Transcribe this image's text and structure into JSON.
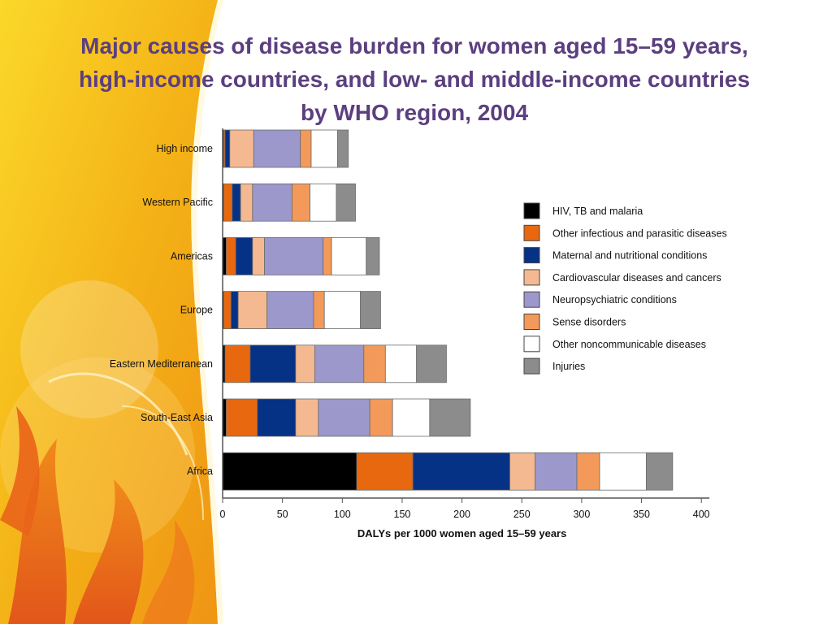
{
  "slide": {
    "title_lines": [
      "Major causes of disease burden for women aged 15–59 years,",
      "high-income countries, and low- and middle-income countries",
      "by WHO region, 2004"
    ]
  },
  "colors": {
    "title": "#5b3f7f",
    "background_gold": "#f6c21a",
    "background_orange": "#e8701c"
  },
  "chart_data": {
    "type": "bar",
    "orientation": "horizontal",
    "stacked": true,
    "categories": [
      "High income",
      "Western Pacific",
      "Americas",
      "Europe",
      "Eastern Mediterranean",
      "South-East Asia",
      "Africa"
    ],
    "series": [
      {
        "name": "HIV, TB and malaria",
        "color": "#000000",
        "values": [
          1,
          1,
          3,
          1,
          2,
          3,
          112
        ]
      },
      {
        "name": "Other infectious and parasitic diseases",
        "color": "#e8680f",
        "values": [
          1,
          7,
          8,
          6,
          21,
          26,
          47
        ]
      },
      {
        "name": "Maternal and nutritional conditions",
        "color": "#063286",
        "values": [
          4,
          7,
          14,
          6,
          38,
          32,
          81
        ]
      },
      {
        "name": "Cardiovascular diseases and cancers",
        "color": "#f5b991",
        "values": [
          20,
          10,
          10,
          24,
          16,
          19,
          21
        ]
      },
      {
        "name": "Neuropsychiatric conditions",
        "color": "#9c98cc",
        "values": [
          39,
          33,
          49,
          39,
          41,
          43,
          35
        ]
      },
      {
        "name": "Sense disorders",
        "color": "#f39a5a",
        "values": [
          9,
          15,
          7,
          9,
          18,
          19,
          19
        ]
      },
      {
        "name": "Other noncommunicable diseases",
        "color": "#ffffff",
        "values": [
          22,
          22,
          29,
          30,
          26,
          31,
          39
        ]
      },
      {
        "name": "Injuries",
        "color": "#8c8c8c",
        "values": [
          9,
          16,
          11,
          17,
          25,
          34,
          22
        ]
      }
    ],
    "xlabel": "DALYs per 1000 women aged 15–59 years",
    "ylabel": "",
    "xlim": [
      0,
      400
    ],
    "xticks": [
      0,
      50,
      100,
      150,
      200,
      250,
      300,
      350,
      400
    ],
    "grid": false,
    "legend_position": "right"
  }
}
